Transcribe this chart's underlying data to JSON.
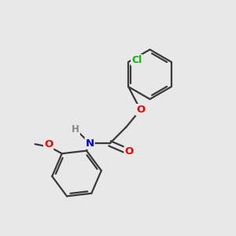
{
  "background_color": "#e8e8e8",
  "bond_color": "#3a3a3a",
  "bond_width": 1.6,
  "atom_colors": {
    "Cl": "#00bb00",
    "O": "#ee0000",
    "N": "#0000cc",
    "H": "#888888",
    "C": "#3a3a3a"
  },
  "font_size": 8.5,
  "fig_size": [
    3.0,
    3.0
  ],
  "dpi": 100
}
